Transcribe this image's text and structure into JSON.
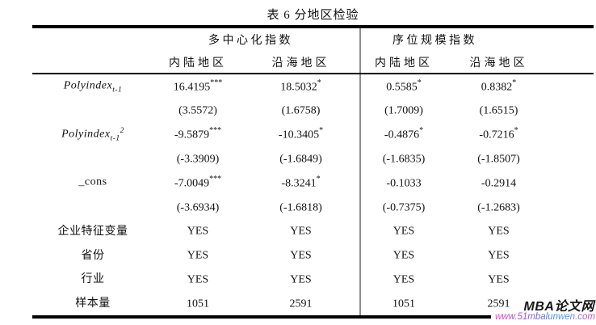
{
  "title": "表 6 分地区检验",
  "table": {
    "group_headers": [
      {
        "label": "多中心化指数"
      },
      {
        "label": "序位规模指数"
      }
    ],
    "sub_headers": [
      "内陆地区",
      "沿海地区",
      "内陆地区",
      "沿海地区"
    ],
    "rows": [
      {
        "italic": true,
        "label": {
          "base": "Polyindex",
          "sub": "t-1",
          "sup": ""
        },
        "cells": [
          {
            "v": "16.4195",
            "s": "***"
          },
          {
            "v": "18.5032",
            "s": "*"
          },
          {
            "v": "0.5585",
            "s": "*"
          },
          {
            "v": "0.8382",
            "s": "*"
          }
        ]
      },
      {
        "italic": false,
        "label": {
          "base": "",
          "sub": "",
          "sup": ""
        },
        "cells": [
          {
            "v": "(3.5572)",
            "s": ""
          },
          {
            "v": "(1.6758)",
            "s": ""
          },
          {
            "v": "(1.7009)",
            "s": ""
          },
          {
            "v": "(1.6515)",
            "s": ""
          }
        ]
      },
      {
        "italic": true,
        "label": {
          "base": "Polyindex",
          "sub": "t-1",
          "sup": "2"
        },
        "cells": [
          {
            "v": "-9.5879",
            "s": "***"
          },
          {
            "v": "-10.3405",
            "s": "*"
          },
          {
            "v": "-0.4876",
            "s": "*"
          },
          {
            "v": "-0.7216",
            "s": "*"
          }
        ]
      },
      {
        "italic": false,
        "label": {
          "base": "",
          "sub": "",
          "sup": ""
        },
        "cells": [
          {
            "v": "(-3.3909)",
            "s": ""
          },
          {
            "v": "(-1.6849)",
            "s": ""
          },
          {
            "v": "(-1.6835)",
            "s": ""
          },
          {
            "v": "(-1.8507)",
            "s": ""
          }
        ]
      },
      {
        "italic": false,
        "label": {
          "base": "_cons",
          "sub": "",
          "sup": ""
        },
        "cells": [
          {
            "v": "-7.0049",
            "s": "***"
          },
          {
            "v": "-8.3241",
            "s": "*"
          },
          {
            "v": "-0.1033",
            "s": ""
          },
          {
            "v": "-0.2914",
            "s": ""
          }
        ]
      },
      {
        "italic": false,
        "label": {
          "base": "",
          "sub": "",
          "sup": ""
        },
        "cells": [
          {
            "v": "(-3.6934)",
            "s": ""
          },
          {
            "v": "(-1.6818)",
            "s": ""
          },
          {
            "v": "(-0.7375)",
            "s": ""
          },
          {
            "v": "(-1.2683)",
            "s": ""
          }
        ]
      },
      {
        "italic": false,
        "label": {
          "base": "企业特征变量",
          "sub": "",
          "sup": ""
        },
        "cells": [
          {
            "v": "YES",
            "s": ""
          },
          {
            "v": "YES",
            "s": ""
          },
          {
            "v": "YES",
            "s": ""
          },
          {
            "v": "YES",
            "s": ""
          }
        ]
      },
      {
        "italic": false,
        "label": {
          "base": "省份",
          "sub": "",
          "sup": ""
        },
        "cells": [
          {
            "v": "YES",
            "s": ""
          },
          {
            "v": "YES",
            "s": ""
          },
          {
            "v": "YES",
            "s": ""
          },
          {
            "v": "YES",
            "s": ""
          }
        ]
      },
      {
        "italic": false,
        "label": {
          "base": "行业",
          "sub": "",
          "sup": ""
        },
        "cells": [
          {
            "v": "YES",
            "s": ""
          },
          {
            "v": "YES",
            "s": ""
          },
          {
            "v": "YES",
            "s": ""
          },
          {
            "v": "YES",
            "s": ""
          }
        ]
      },
      {
        "italic": false,
        "label": {
          "base": "样本量",
          "sub": "",
          "sup": ""
        },
        "cells": [
          {
            "v": "1051",
            "s": ""
          },
          {
            "v": "2591",
            "s": ""
          },
          {
            "v": "1051",
            "s": ""
          },
          {
            "v": "2591",
            "s": ""
          }
        ]
      }
    ]
  },
  "watermark": {
    "brand": "MBA论文网",
    "url": "www.51mbalunwen.com"
  },
  "colors": {
    "rule": "#000000",
    "divider_gray": "#8f8f8f",
    "url_pink": "#ee3fc8",
    "url_blue": "#3fa0f0",
    "text": "#111111"
  }
}
